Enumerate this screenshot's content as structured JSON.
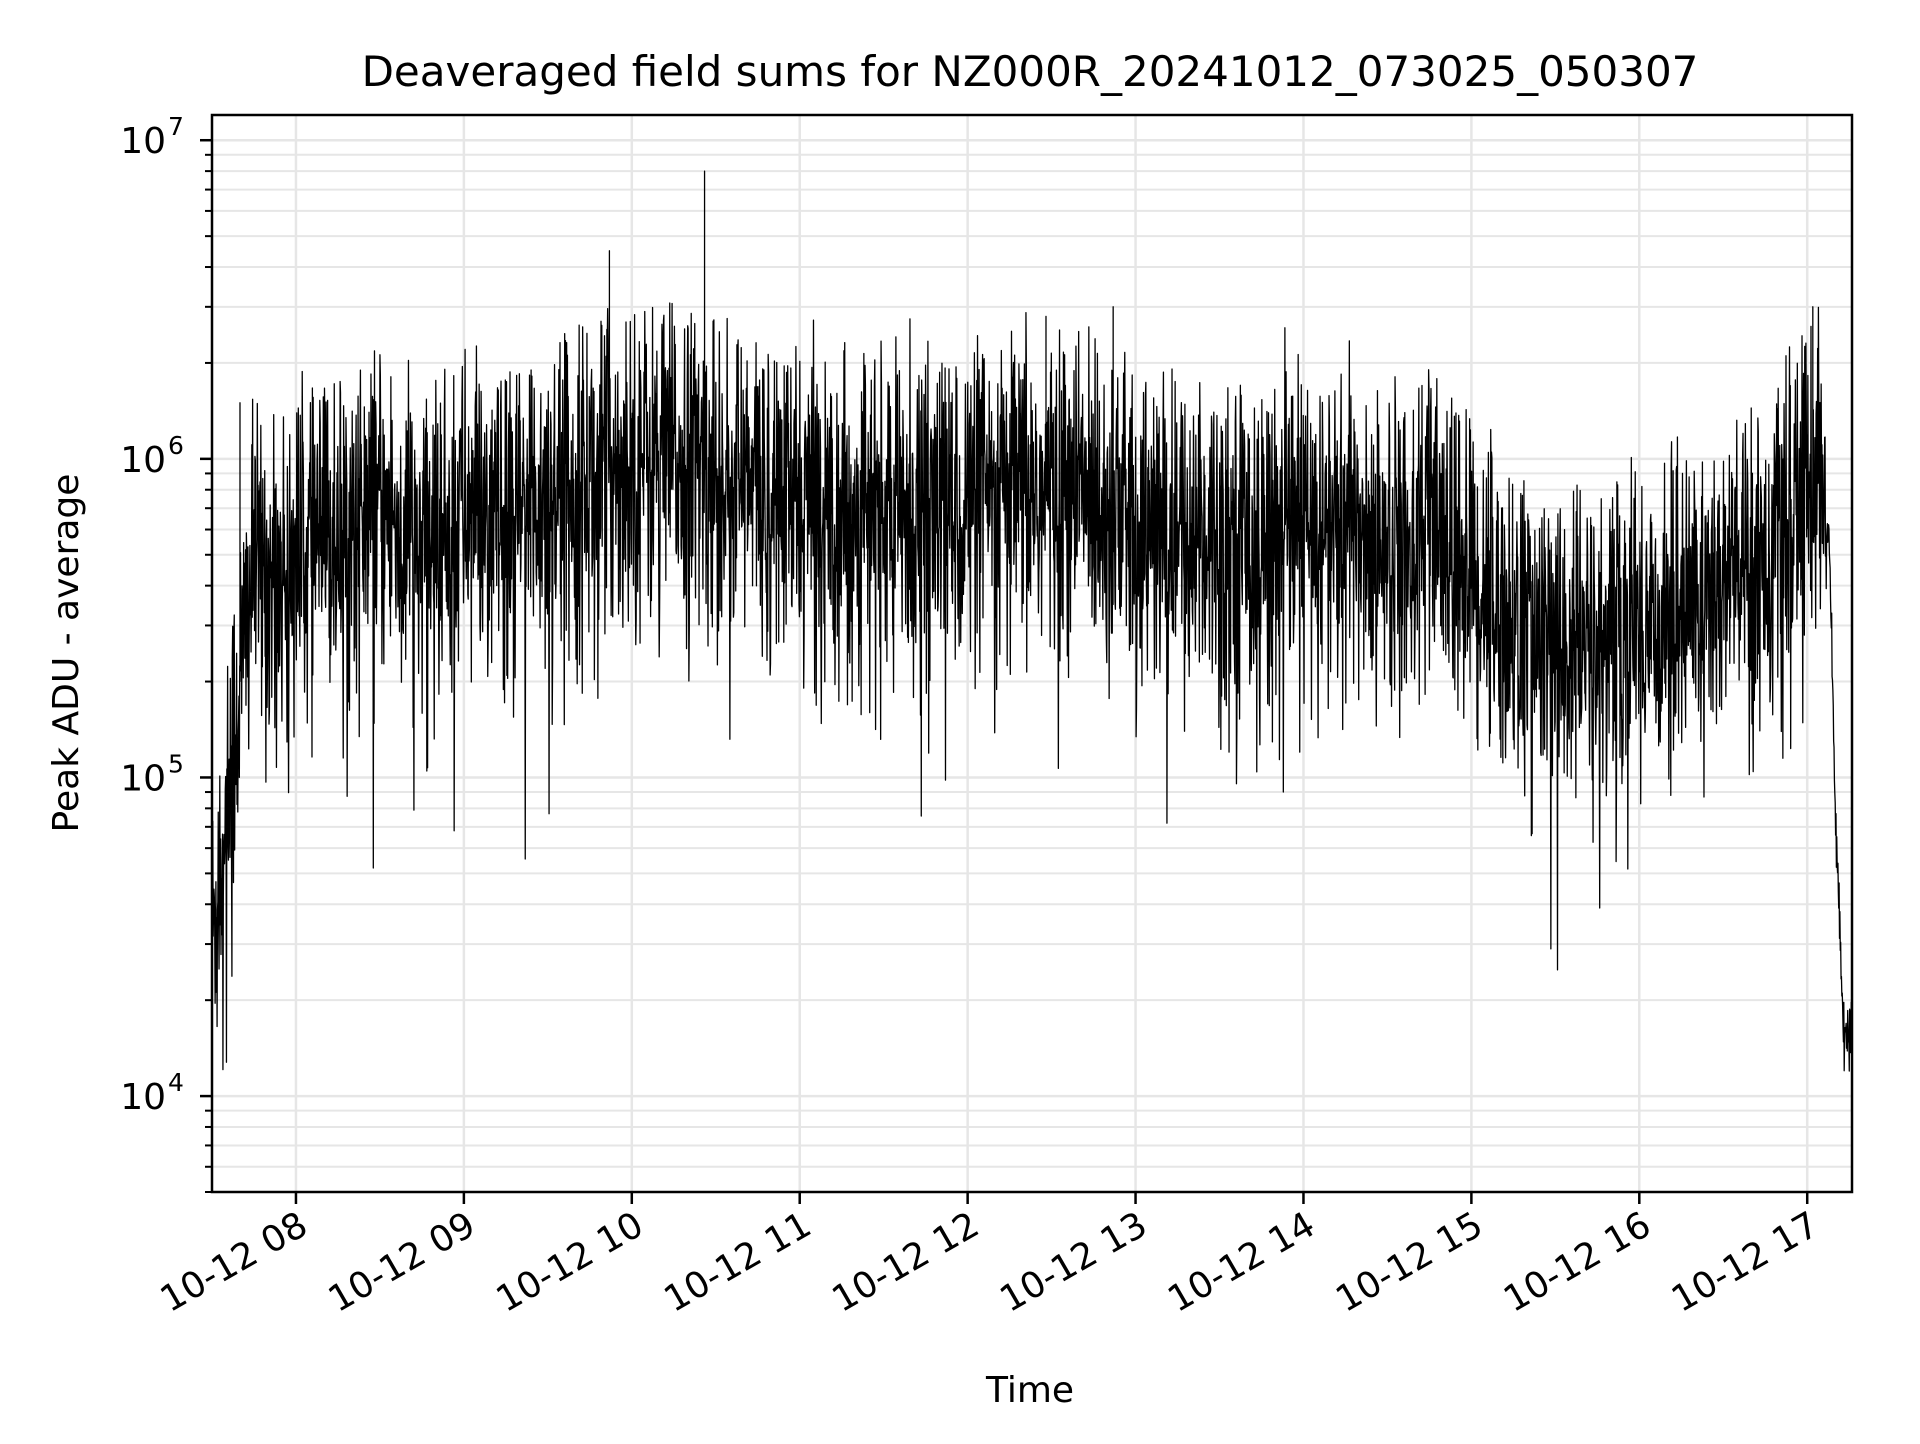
{
  "chart_data": {
    "type": "line",
    "title": "Deaveraged field sums for NZ000R_20241012_073025_050307",
    "xlabel": "Time",
    "ylabel": "Peak ADU - average",
    "yscale": "log",
    "ylim": [
      5000,
      12000000
    ],
    "xlim": [
      "10-12 07:30",
      "10-12 17:16"
    ],
    "grid": true,
    "line_color": "#000000",
    "x_ticks": [
      "10-12 08",
      "10-12 09",
      "10-12 10",
      "10-12 11",
      "10-12 12",
      "10-12 13",
      "10-12 14",
      "10-12 15",
      "10-12 16",
      "10-12 17"
    ],
    "y_ticks": [
      {
        "value": 10000,
        "base": "10",
        "exp": "4"
      },
      {
        "value": 100000,
        "base": "10",
        "exp": "5"
      },
      {
        "value": 1000000,
        "base": "10",
        "exp": "6"
      },
      {
        "value": 10000000,
        "base": "10",
        "exp": "7"
      }
    ],
    "series": [
      {
        "x": [
          "10-12 07:30",
          "10-12 07:35",
          "10-12 07:40",
          "10-12 07:45",
          "10-12 07:50",
          "10-12 08:00",
          "10-12 08:15",
          "10-12 08:30",
          "10-12 08:45",
          "10-12 09:00",
          "10-12 09:15",
          "10-12 09:30",
          "10-12 09:45",
          "10-12 09:52",
          "10-12 10:00",
          "10-12 10:15",
          "10-12 10:26",
          "10-12 10:30",
          "10-12 10:45",
          "10-12 11:00",
          "10-12 11:15",
          "10-12 11:30",
          "10-12 11:45",
          "10-12 12:00",
          "10-12 12:15",
          "10-12 12:28",
          "10-12 12:45",
          "10-12 12:52",
          "10-12 13:00",
          "10-12 13:15",
          "10-12 13:30",
          "10-12 13:45",
          "10-12 14:00",
          "10-12 14:15",
          "10-12 14:30",
          "10-12 14:45",
          "10-12 15:00",
          "10-12 15:15",
          "10-12 15:30",
          "10-12 15:45",
          "10-12 16:00",
          "10-12 16:15",
          "10-12 16:30",
          "10-12 16:45",
          "10-12 16:55",
          "10-12 17:00",
          "10-12 17:02",
          "10-12 17:05",
          "10-12 17:08",
          "10-12 17:10",
          "10-12 17:13",
          "10-12 17:16"
        ],
        "y": [
          30000,
          80000,
          1500000,
          500000,
          400000,
          500000,
          600000,
          700000,
          500000,
          700000,
          600000,
          800000,
          900000,
          4500000,
          1000000,
          1000000,
          8000000,
          900000,
          800000,
          700000,
          700000,
          650000,
          700000,
          700000,
          750000,
          2800000,
          800000,
          3000000,
          600000,
          550000,
          600000,
          550000,
          600000,
          600000,
          550000,
          600000,
          450000,
          300000,
          250000,
          250000,
          300000,
          350000,
          400000,
          500000,
          600000,
          900000,
          3000000,
          1000000,
          500000,
          80000,
          15000,
          16000
        ]
      }
    ]
  }
}
